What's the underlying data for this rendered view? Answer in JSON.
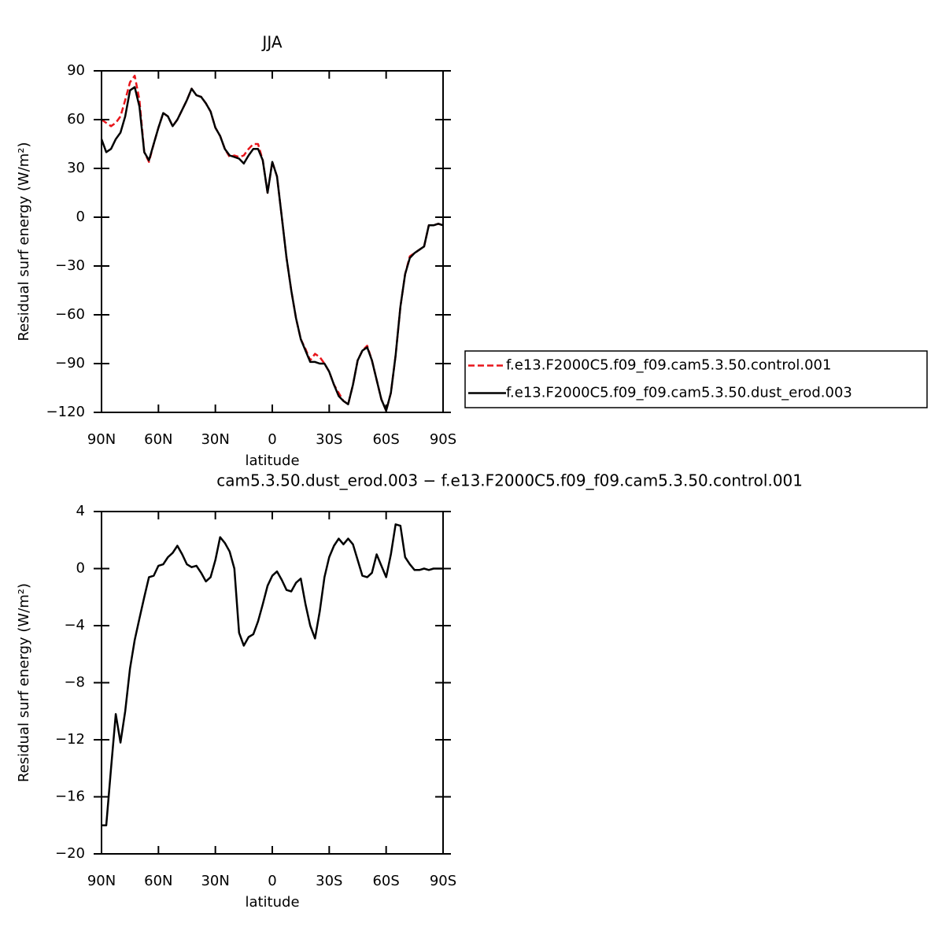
{
  "chart_data": [
    {
      "type": "line",
      "title": "JJA",
      "xlabel": "latitude",
      "ylabel": "Residual surf energy (W/m²)",
      "xlim": [
        90,
        -90
      ],
      "xticks": [
        {
          "value": 90,
          "label": "90N"
        },
        {
          "value": 60,
          "label": "60N"
        },
        {
          "value": 30,
          "label": "30N"
        },
        0,
        {
          "value": -30,
          "label": "30S"
        },
        {
          "value": -60,
          "label": "60S"
        },
        {
          "value": -90,
          "label": "90S"
        }
      ],
      "ylim": [
        -120,
        90
      ],
      "yticks": [
        90,
        60,
        30,
        0,
        {
          "value": -30,
          "label": "−30"
        },
        {
          "value": -60,
          "label": "−60"
        },
        {
          "value": -90,
          "label": "−90"
        },
        {
          "value": -120,
          "label": "−120"
        }
      ],
      "legend": "right",
      "x": [
        90,
        87.5,
        85,
        82.5,
        80,
        77.5,
        75,
        72.5,
        70,
        67.5,
        65,
        62.5,
        60,
        57.5,
        55,
        52.5,
        50,
        47.5,
        45,
        42.5,
        40,
        37.5,
        35,
        32.5,
        30,
        27.5,
        25,
        22.5,
        20,
        17.5,
        15,
        12.5,
        10,
        7.5,
        5,
        2.5,
        0,
        -2.5,
        -5,
        -7.5,
        -10,
        -12.5,
        -15,
        -17.5,
        -20,
        -22.5,
        -25,
        -27.5,
        -30,
        -32.5,
        -35,
        -37.5,
        -40,
        -42.5,
        -45,
        -47.5,
        -50,
        -52.5,
        -55,
        -57.5,
        -60,
        -62.5,
        -65,
        -67.5,
        -70,
        -72.5,
        -75,
        -77.5,
        -80,
        -82.5,
        -85,
        -87.5,
        -90
      ],
      "series": [
        {
          "name": "f.e13.F2000C5.f09_f09.cam5.3.50.control.001",
          "color": "#e8151b",
          "dash": true,
          "values": [
            60,
            58,
            56,
            58,
            62,
            72,
            83,
            87,
            72,
            40,
            34,
            45,
            55,
            64,
            62,
            56,
            60,
            66,
            72,
            79,
            75,
            74,
            70,
            65,
            55,
            50,
            42,
            37,
            38,
            37,
            38,
            42,
            45,
            45,
            35,
            15,
            34,
            25,
            0,
            -25,
            -45,
            -62,
            -75,
            -81,
            -88,
            -84,
            -86,
            -90,
            -95,
            -103,
            -108,
            -113,
            -115,
            -103,
            -88,
            -82,
            -79,
            -88,
            -100,
            -112,
            -119,
            -108,
            -85,
            -55,
            -35,
            -24,
            -22,
            -20,
            -18,
            -5,
            -5,
            -4,
            -5
          ]
        },
        {
          "name": "f.e13.F2000C5.f09_f09.cam5.3.50.dust_erod.003",
          "color": "#000000",
          "dash": false,
          "values": [
            48,
            40,
            42,
            48,
            52,
            62,
            78,
            80,
            68,
            40,
            35,
            45,
            55,
            64,
            62,
            56,
            60,
            66,
            72,
            79,
            75,
            74,
            70,
            65,
            55,
            50,
            42,
            38,
            37,
            36,
            33,
            38,
            42,
            42,
            35,
            15,
            34,
            25,
            0,
            -25,
            -45,
            -62,
            -75,
            -82,
            -89,
            -89,
            -90,
            -90,
            -95,
            -103,
            -110,
            -113,
            -115,
            -103,
            -88,
            -82,
            -80,
            -88,
            -100,
            -112,
            -119,
            -108,
            -85,
            -55,
            -35,
            -25,
            -22,
            -20,
            -18,
            -5,
            -5,
            -4,
            -5
          ]
        }
      ]
    },
    {
      "type": "line",
      "title": "cam5.3.50.dust_erod.003 − f.e13.F2000C5.f09_f09.cam5.3.50.control.001",
      "xlabel": "latitude",
      "ylabel": "Residual surf energy (W/m²)",
      "xlim": [
        90,
        -90
      ],
      "xticks": [
        {
          "value": 90,
          "label": "90N"
        },
        {
          "value": 60,
          "label": "60N"
        },
        {
          "value": 30,
          "label": "30N"
        },
        0,
        {
          "value": -30,
          "label": "30S"
        },
        {
          "value": -60,
          "label": "60S"
        },
        {
          "value": -90,
          "label": "90S"
        }
      ],
      "ylim": [
        -20,
        4
      ],
      "yticks": [
        4,
        0,
        {
          "value": -4,
          "label": "−4"
        },
        {
          "value": -8,
          "label": "−8"
        },
        {
          "value": -12,
          "label": "−12"
        },
        {
          "value": -16,
          "label": "−16"
        },
        {
          "value": -20,
          "label": "−20"
        }
      ],
      "x": [
        90,
        87.5,
        85,
        82.5,
        80,
        77.5,
        75,
        72.5,
        70,
        67.5,
        65,
        62.5,
        60,
        57.5,
        55,
        52.5,
        50,
        47.5,
        45,
        42.5,
        40,
        37.5,
        35,
        32.5,
        30,
        27.5,
        25,
        22.5,
        20,
        17.5,
        15,
        12.5,
        10,
        7.5,
        5,
        2.5,
        0,
        -2.5,
        -5,
        -7.5,
        -10,
        -12.5,
        -15,
        -17.5,
        -20,
        -22.5,
        -25,
        -27.5,
        -30,
        -32.5,
        -35,
        -37.5,
        -40,
        -42.5,
        -45,
        -47.5,
        -50,
        -52.5,
        -55,
        -57.5,
        -60,
        -62.5,
        -65,
        -67.5,
        -70,
        -72.5,
        -75,
        -77.5,
        -80,
        -82.5,
        -85,
        -87.5,
        -90
      ],
      "color": "#000000",
      "values": [
        -18,
        -18,
        -14,
        -10.2,
        -12.2,
        -10,
        -7,
        -5,
        -3.5,
        -2,
        -0.6,
        -0.5,
        0.2,
        0.3,
        0.8,
        1.1,
        1.6,
        1,
        0.3,
        0.1,
        0.2,
        -0.3,
        -0.9,
        -0.6,
        0.6,
        2.2,
        1.8,
        1.2,
        0,
        -4.5,
        -5.4,
        -4.8,
        -4.6,
        -3.7,
        -2.5,
        -1.2,
        -0.5,
        -0.2,
        -0.8,
        -1.5,
        -1.6,
        -1,
        -0.7,
        -2.5,
        -4,
        -4.9,
        -3,
        -0.6,
        0.8,
        1.6,
        2.1,
        1.7,
        2.1,
        1.7,
        0.6,
        -0.5,
        -0.6,
        -0.3,
        1,
        0.2,
        -0.6,
        1,
        3.1,
        3,
        0.8,
        0.3,
        -0.1,
        -0.1,
        0,
        -0.1,
        0,
        0,
        0
      ]
    }
  ]
}
